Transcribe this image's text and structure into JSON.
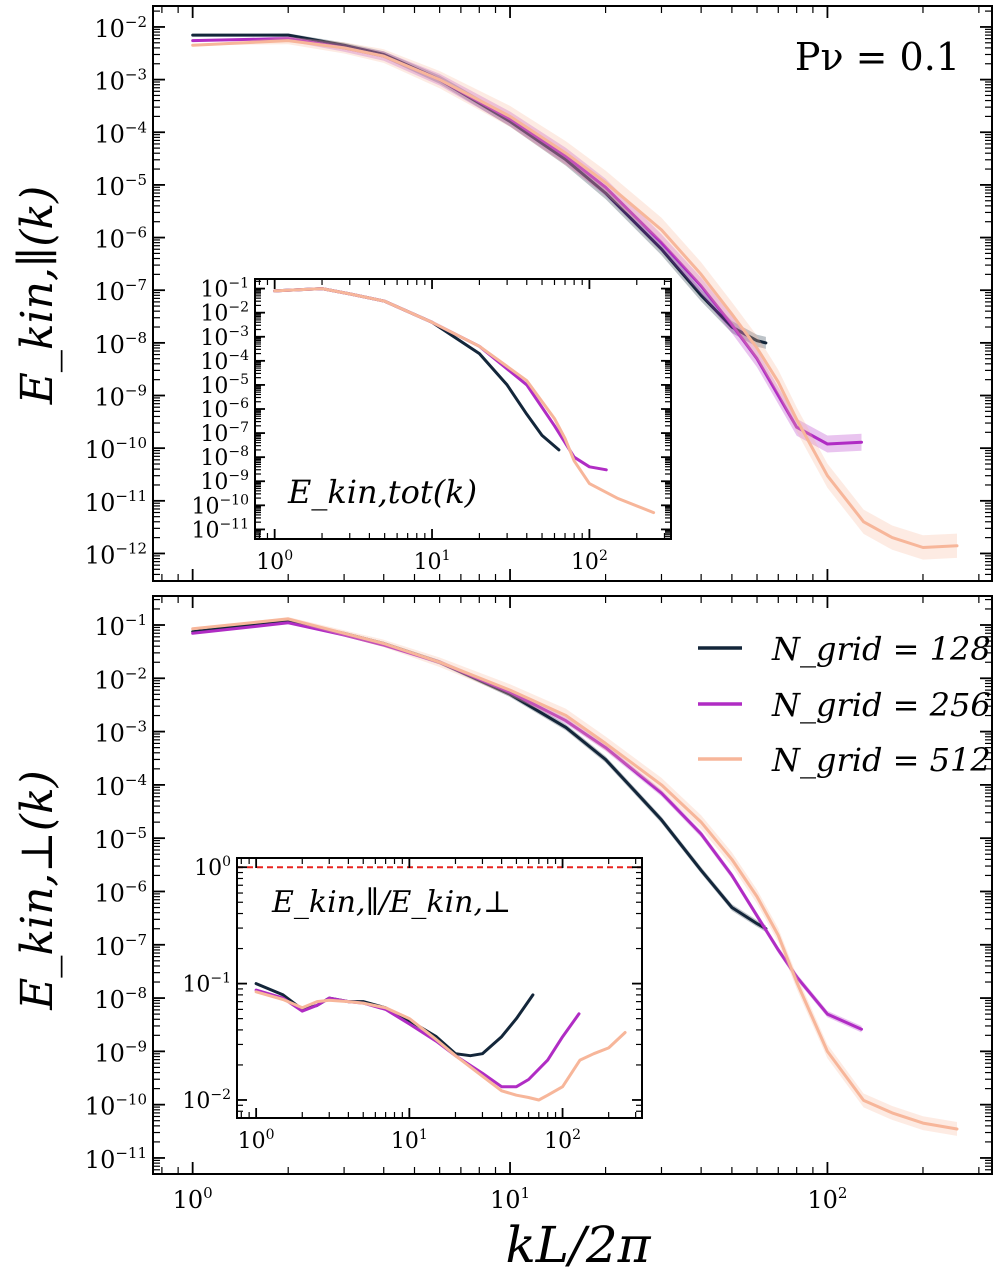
{
  "chart_data": [
    {
      "id": "top",
      "type": "line",
      "title": "",
      "ylabel": "E_kin,∥(k)",
      "annotation": "Pν = 0.1",
      "xscale": "log",
      "yscale": "log",
      "xlim": [
        0.75,
        330
      ],
      "ylim": [
        3e-13,
        0.025
      ],
      "yticks": [
        {
          "v": 0.01,
          "b": "10",
          "e": "-2"
        },
        {
          "v": 0.001,
          "b": "10",
          "e": "-3"
        },
        {
          "v": 0.0001,
          "b": "10",
          "e": "-4"
        },
        {
          "v": 1e-05,
          "b": "10",
          "e": "-5"
        },
        {
          "v": 1e-06,
          "b": "10",
          "e": "-6"
        },
        {
          "v": 1e-07,
          "b": "10",
          "e": "-7"
        },
        {
          "v": 1e-08,
          "b": "10",
          "e": "-8"
        },
        {
          "v": 1e-09,
          "b": "10",
          "e": "-9"
        },
        {
          "v": 1e-10,
          "b": "10",
          "e": "-10"
        },
        {
          "v": 1e-11,
          "b": "10",
          "e": "-11"
        },
        {
          "v": 1e-12,
          "b": "10",
          "e": "-12"
        }
      ],
      "series": [
        {
          "name": "N_grid = 128",
          "color": "#13263a",
          "band": 0.3,
          "x": [
            1,
            2,
            3,
            4,
            6,
            10,
            15,
            20,
            30,
            40,
            50,
            60,
            64
          ],
          "y": [
            0.007,
            0.007,
            0.0045,
            0.003,
            0.001,
            0.00016,
            3e-05,
            7e-06,
            6e-07,
            8e-08,
            2e-08,
            1.1e-08,
            1e-08
          ]
        },
        {
          "name": "N_grid = 256",
          "color": "#b02cc4",
          "band": 0.45,
          "x": [
            1,
            2,
            3,
            4,
            6,
            10,
            15,
            20,
            30,
            40,
            50,
            60,
            70,
            80,
            100,
            128
          ],
          "y": [
            0.0055,
            0.006,
            0.004,
            0.0028,
            0.001,
            0.00018,
            3.5e-05,
            9e-06,
            8e-07,
            1.2e-07,
            2.2e-08,
            5e-09,
            1e-09,
            2.5e-10,
            1.2e-10,
            1.3e-10
          ]
        },
        {
          "name": "N_grid = 512",
          "color": "#f7b69a",
          "band": 0.7,
          "x": [
            1,
            2,
            3,
            4,
            6,
            10,
            15,
            20,
            30,
            40,
            50,
            60,
            70,
            80,
            100,
            130,
            160,
            200,
            256
          ],
          "y": [
            0.0045,
            0.0055,
            0.004,
            0.0028,
            0.001,
            0.0002,
            4e-05,
            1.1e-05,
            1.4e-06,
            2e-07,
            3.5e-08,
            8e-09,
            1.8e-09,
            3.5e-10,
            3e-11,
            4e-12,
            2e-12,
            1.3e-12,
            1.4e-12
          ]
        }
      ],
      "inset": {
        "ylabel": "E_kin,tot(k)",
        "xlim": [
          0.75,
          330
        ],
        "ylim": [
          4e-12,
          0.25
        ],
        "yticks": [
          {
            "v": 0.1,
            "b": "10",
            "e": "-1"
          },
          {
            "v": 0.01,
            "b": "10",
            "e": "-2"
          },
          {
            "v": 0.001,
            "b": "10",
            "e": "-3"
          },
          {
            "v": 0.0001,
            "b": "10",
            "e": "-4"
          },
          {
            "v": 1e-05,
            "b": "10",
            "e": "-5"
          },
          {
            "v": 1e-06,
            "b": "10",
            "e": "-6"
          },
          {
            "v": 1e-07,
            "b": "10",
            "e": "-7"
          },
          {
            "v": 1e-08,
            "b": "10",
            "e": "-8"
          },
          {
            "v": 1e-09,
            "b": "10",
            "e": "-9"
          },
          {
            "v": 1e-10,
            "b": "10",
            "e": "-10"
          },
          {
            "v": 1e-11,
            "b": "10",
            "e": "-11"
          }
        ],
        "xticks": [
          {
            "v": 1,
            "b": "10",
            "e": "0"
          },
          {
            "v": 10,
            "b": "10",
            "e": "1"
          },
          {
            "v": 100,
            "b": "10",
            "e": "2"
          }
        ],
        "series": [
          {
            "name": "N_grid = 128",
            "color": "#13263a",
            "x": [
              1,
              2,
              3,
              5,
              10,
              20,
              30,
              40,
              50,
              64
            ],
            "y": [
              0.08,
              0.1,
              0.06,
              0.03,
              0.004,
              0.0002,
              1e-05,
              6e-07,
              8e-08,
              2e-08
            ]
          },
          {
            "name": "N_grid = 256",
            "color": "#b02cc4",
            "x": [
              1,
              2,
              3,
              5,
              10,
              20,
              40,
              60,
              80,
              100,
              128
            ],
            "y": [
              0.08,
              0.1,
              0.06,
              0.03,
              0.004,
              0.0004,
              1e-05,
              2e-07,
              1e-08,
              4e-09,
              3e-09
            ]
          },
          {
            "name": "N_grid = 512",
            "color": "#f7b69a",
            "x": [
              1,
              2,
              3,
              5,
              10,
              20,
              40,
              60,
              70,
              80,
              100,
              150,
              256
            ],
            "y": [
              0.08,
              0.1,
              0.06,
              0.03,
              0.004,
              0.0004,
              1.5e-05,
              4e-07,
              6e-08,
              7e-09,
              8e-10,
              2e-10,
              5e-11
            ]
          }
        ]
      }
    },
    {
      "id": "bottom",
      "type": "line",
      "title": "",
      "xlabel": "kL/2π",
      "ylabel": "E_kin,⊥(k)",
      "xscale": "log",
      "yscale": "log",
      "xlim": [
        0.75,
        330
      ],
      "ylim": [
        5e-12,
        0.35
      ],
      "xticks": [
        {
          "v": 1,
          "b": "10",
          "e": "0"
        },
        {
          "v": 10,
          "b": "10",
          "e": "1"
        },
        {
          "v": 100,
          "b": "10",
          "e": "2"
        }
      ],
      "yticks": [
        {
          "v": 0.1,
          "b": "10",
          "e": "-1"
        },
        {
          "v": 0.01,
          "b": "10",
          "e": "-2"
        },
        {
          "v": 0.001,
          "b": "10",
          "e": "-3"
        },
        {
          "v": 0.0001,
          "b": "10",
          "e": "-4"
        },
        {
          "v": 1e-05,
          "b": "10",
          "e": "-5"
        },
        {
          "v": 1e-06,
          "b": "10",
          "e": "-6"
        },
        {
          "v": 1e-07,
          "b": "10",
          "e": "-7"
        },
        {
          "v": 1e-08,
          "b": "10",
          "e": "-8"
        },
        {
          "v": 1e-09,
          "b": "10",
          "e": "-9"
        },
        {
          "v": 1e-10,
          "b": "10",
          "e": "-10"
        },
        {
          "v": 1e-11,
          "b": "10",
          "e": "-11"
        }
      ],
      "legend": {
        "placement": "top-right",
        "entries": [
          "N_grid = 128",
          "N_grid = 256",
          "N_grid = 512"
        ]
      },
      "series": [
        {
          "name": "N_grid = 128",
          "color": "#13263a",
          "band": 0.15,
          "x": [
            1,
            2,
            3,
            4,
            6,
            10,
            15,
            20,
            30,
            40,
            50,
            60,
            64
          ],
          "y": [
            0.075,
            0.12,
            0.07,
            0.045,
            0.02,
            0.005,
            0.0012,
            0.0003,
            2.2e-05,
            2.5e-06,
            5e-07,
            2.5e-07,
            2e-07
          ]
        },
        {
          "name": "N_grid = 256",
          "color": "#b02cc4",
          "band": 0.15,
          "x": [
            1,
            2,
            3,
            4,
            6,
            10,
            15,
            20,
            30,
            40,
            50,
            60,
            70,
            80,
            100,
            128
          ],
          "y": [
            0.07,
            0.11,
            0.065,
            0.042,
            0.02,
            0.0055,
            0.0016,
            0.0005,
            7e-05,
            1.2e-05,
            2e-06,
            3.5e-07,
            8e-08,
            2.5e-08,
            5e-09,
            2.6e-09
          ]
        },
        {
          "name": "N_grid = 512",
          "color": "#f7b69a",
          "band": 0.35,
          "x": [
            1,
            2,
            3,
            4,
            6,
            10,
            15,
            20,
            30,
            40,
            50,
            60,
            70,
            80,
            100,
            130,
            160,
            200,
            256
          ],
          "y": [
            0.085,
            0.13,
            0.07,
            0.045,
            0.02,
            0.006,
            0.002,
            0.0006,
            0.0001,
            2e-05,
            4e-06,
            8e-07,
            1.5e-07,
            2e-08,
            1e-09,
            1.2e-10,
            7e-11,
            4.5e-11,
            3.5e-11
          ]
        }
      ],
      "inset": {
        "ylabel": "E_kin,∥/E_kin,⊥",
        "xlim": [
          0.75,
          330
        ],
        "ylim": [
          0.007,
          1.2
        ],
        "reference_line": {
          "y": 1,
          "color": "#e8231f",
          "style": "dashed"
        },
        "yticks": [
          {
            "v": 1,
            "b": "10",
            "e": "0"
          },
          {
            "v": 0.1,
            "b": "10",
            "e": "-1"
          },
          {
            "v": 0.01,
            "b": "10",
            "e": "-2"
          }
        ],
        "xticks": [
          {
            "v": 1,
            "b": "10",
            "e": "0"
          },
          {
            "v": 10,
            "b": "10",
            "e": "1"
          },
          {
            "v": 100,
            "b": "10",
            "e": "2"
          }
        ],
        "series": [
          {
            "name": "N_grid = 128",
            "color": "#13263a",
            "x": [
              1,
              1.5,
              2,
              2.5,
              3,
              4,
              5,
              7,
              10,
              15,
              20,
              25,
              30,
              40,
              50,
              64
            ],
            "y": [
              0.1,
              0.08,
              0.06,
              0.065,
              0.075,
              0.07,
              0.07,
              0.062,
              0.048,
              0.035,
              0.025,
              0.024,
              0.025,
              0.035,
              0.05,
              0.08
            ]
          },
          {
            "name": "N_grid = 256",
            "color": "#b02cc4",
            "x": [
              1,
              1.5,
              2,
              2.5,
              3,
              4,
              5,
              7,
              10,
              15,
              20,
              30,
              40,
              50,
              60,
              80,
              100,
              128
            ],
            "y": [
              0.088,
              0.075,
              0.058,
              0.065,
              0.075,
              0.07,
              0.068,
              0.06,
              0.045,
              0.032,
              0.024,
              0.017,
              0.013,
              0.013,
              0.015,
              0.022,
              0.035,
              0.055
            ]
          },
          {
            "name": "N_grid = 512",
            "color": "#f7b69a",
            "x": [
              1,
              1.5,
              2,
              2.5,
              3,
              4,
              5,
              7,
              10,
              15,
              20,
              30,
              40,
              50,
              60,
              70,
              80,
              100,
              130,
              160,
              200,
              256
            ],
            "y": [
              0.085,
              0.073,
              0.062,
              0.07,
              0.072,
              0.07,
              0.068,
              0.062,
              0.05,
              0.033,
              0.024,
              0.016,
              0.012,
              0.011,
              0.0105,
              0.01,
              0.011,
              0.013,
              0.022,
              0.025,
              0.028,
              0.038
            ]
          }
        ]
      }
    }
  ]
}
